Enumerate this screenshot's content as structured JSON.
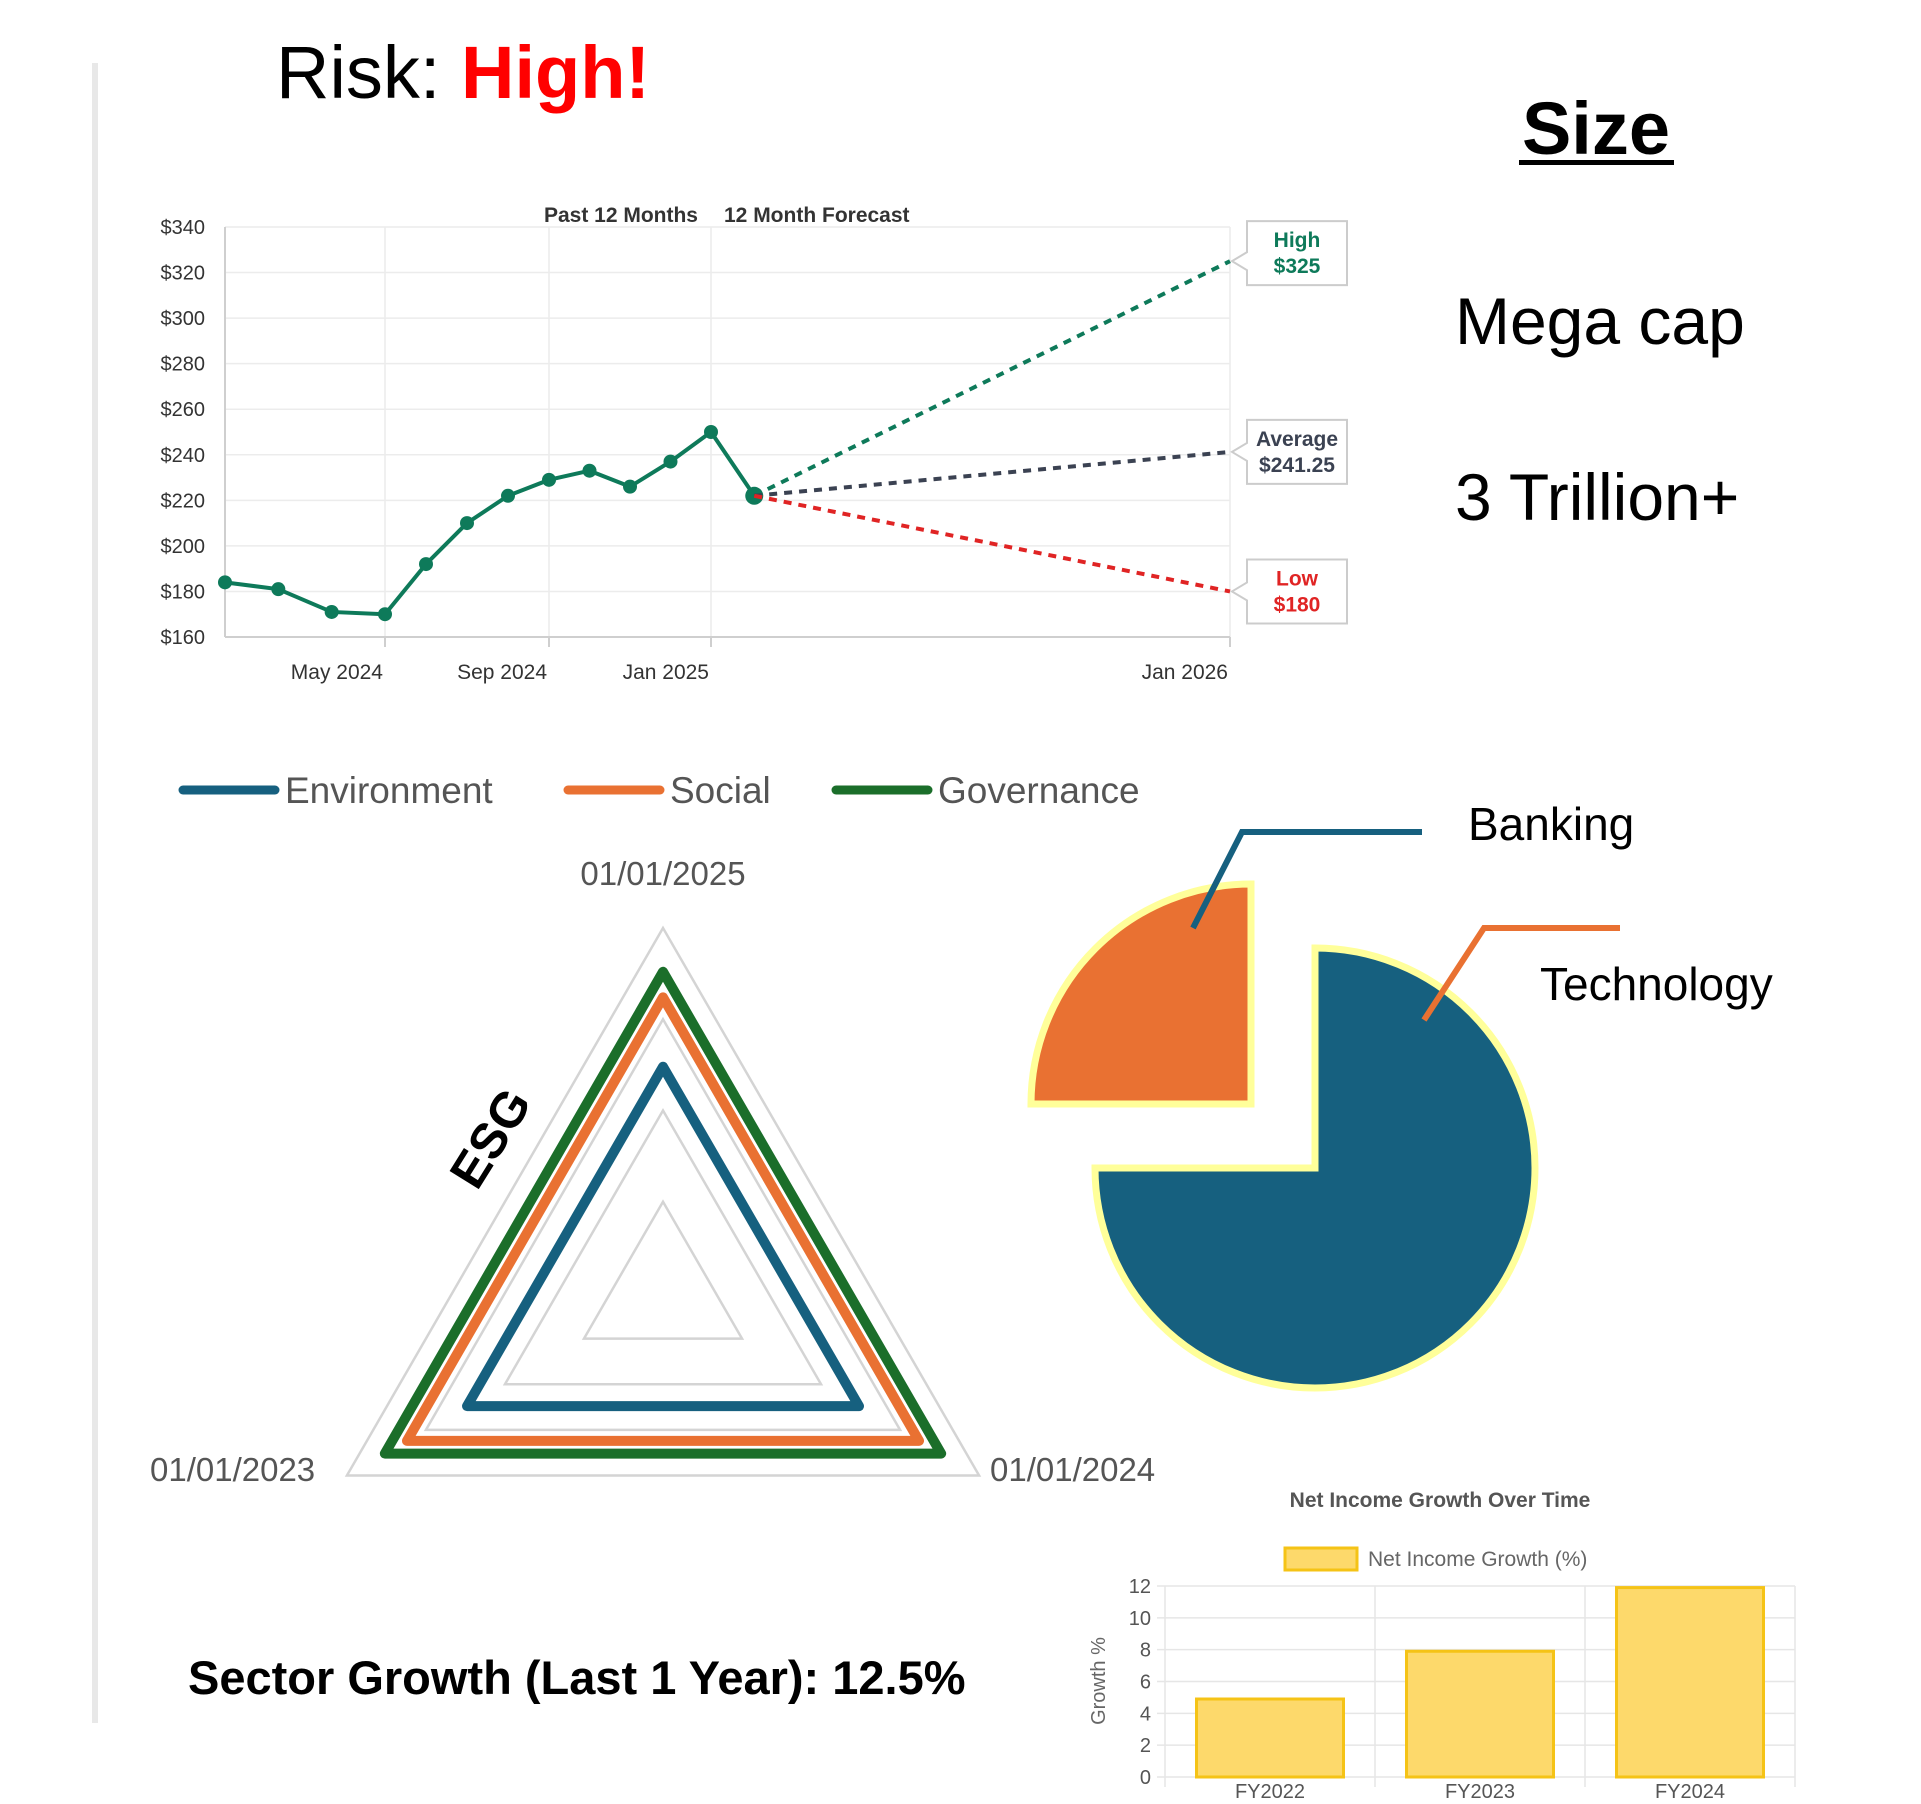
{
  "risk": {
    "label": "Risk: ",
    "value": "High!"
  },
  "size": {
    "title": "Size",
    "class": "Mega cap",
    "market_cap": "3 Trillion+"
  },
  "sector_growth": "Sector Growth (Last 1 Year): 12.5%",
  "colors": {
    "price_line": "#0e7a5a",
    "high": "#0e7a5a",
    "average": "#3b4252",
    "low": "#e02424",
    "risk_value": "#ff0000",
    "environment": "#16607f",
    "social": "#e97132",
    "governance": "#1b6e2a",
    "bar_fill": "#fdd96b",
    "bar_stroke": "#f5c316",
    "pie_outline": "#ffff9a"
  },
  "chart_data": [
    {
      "type": "line",
      "header_left": "Past 12 Months",
      "header_right": "12 Month Forecast",
      "y_ticks": [
        "$340",
        "$320",
        "$300",
        "$280",
        "$260",
        "$240",
        "$220",
        "$200",
        "$180",
        "$160"
      ],
      "x_ticks": [
        "May 2024",
        "Sep 2024",
        "Jan 2025",
        "Jan 2026"
      ],
      "ylim": [
        160,
        340
      ],
      "history": [
        {
          "date": "2024-02",
          "value": 184
        },
        {
          "date": "2024-03",
          "value": 181
        },
        {
          "date": "2024-04",
          "value": 171
        },
        {
          "date": "2024-05",
          "value": 170
        },
        {
          "date": "2024-06",
          "value": 192
        },
        {
          "date": "2024-07",
          "value": 210
        },
        {
          "date": "2024-08",
          "value": 222
        },
        {
          "date": "2024-09",
          "value": 229
        },
        {
          "date": "2024-10",
          "value": 233
        },
        {
          "date": "2024-11",
          "value": 226
        },
        {
          "date": "2024-12",
          "value": 237
        },
        {
          "date": "2025-01",
          "value": 250
        },
        {
          "date": "2025-02",
          "value": 222
        }
      ],
      "forecast": [
        {
          "label": "High",
          "value_label": "$325",
          "value": 325
        },
        {
          "label": "Average",
          "value_label": "$241.25",
          "value": 241.25
        },
        {
          "label": "Low",
          "value_label": "$180",
          "value": 180
        }
      ]
    },
    {
      "type": "radar",
      "axes": [
        "01/01/2025",
        "01/01/2024",
        "01/01/2023"
      ],
      "title": "ESG",
      "series": [
        {
          "name": "Environment",
          "values": [
            0.62,
            0.62,
            0.62
          ]
        },
        {
          "name": "Social",
          "values": [
            0.81,
            0.81,
            0.81
          ]
        },
        {
          "name": "Governance",
          "values": [
            0.88,
            0.88,
            0.88
          ]
        }
      ]
    },
    {
      "type": "pie",
      "slices": [
        {
          "name": "Banking",
          "value": 25
        },
        {
          "name": "Technology",
          "value": 75
        }
      ]
    },
    {
      "type": "bar",
      "title": "Net Income Growth Over Time",
      "legend": "Net Income Growth (%)",
      "ylabel": "Growth %",
      "categories": [
        "FY2022",
        "FY2023",
        "FY2024"
      ],
      "values": [
        4.9,
        7.9,
        11.9
      ],
      "ylim": [
        0,
        12
      ],
      "y_ticks": [
        "12",
        "10",
        "8",
        "6",
        "4",
        "2",
        "0"
      ]
    }
  ]
}
